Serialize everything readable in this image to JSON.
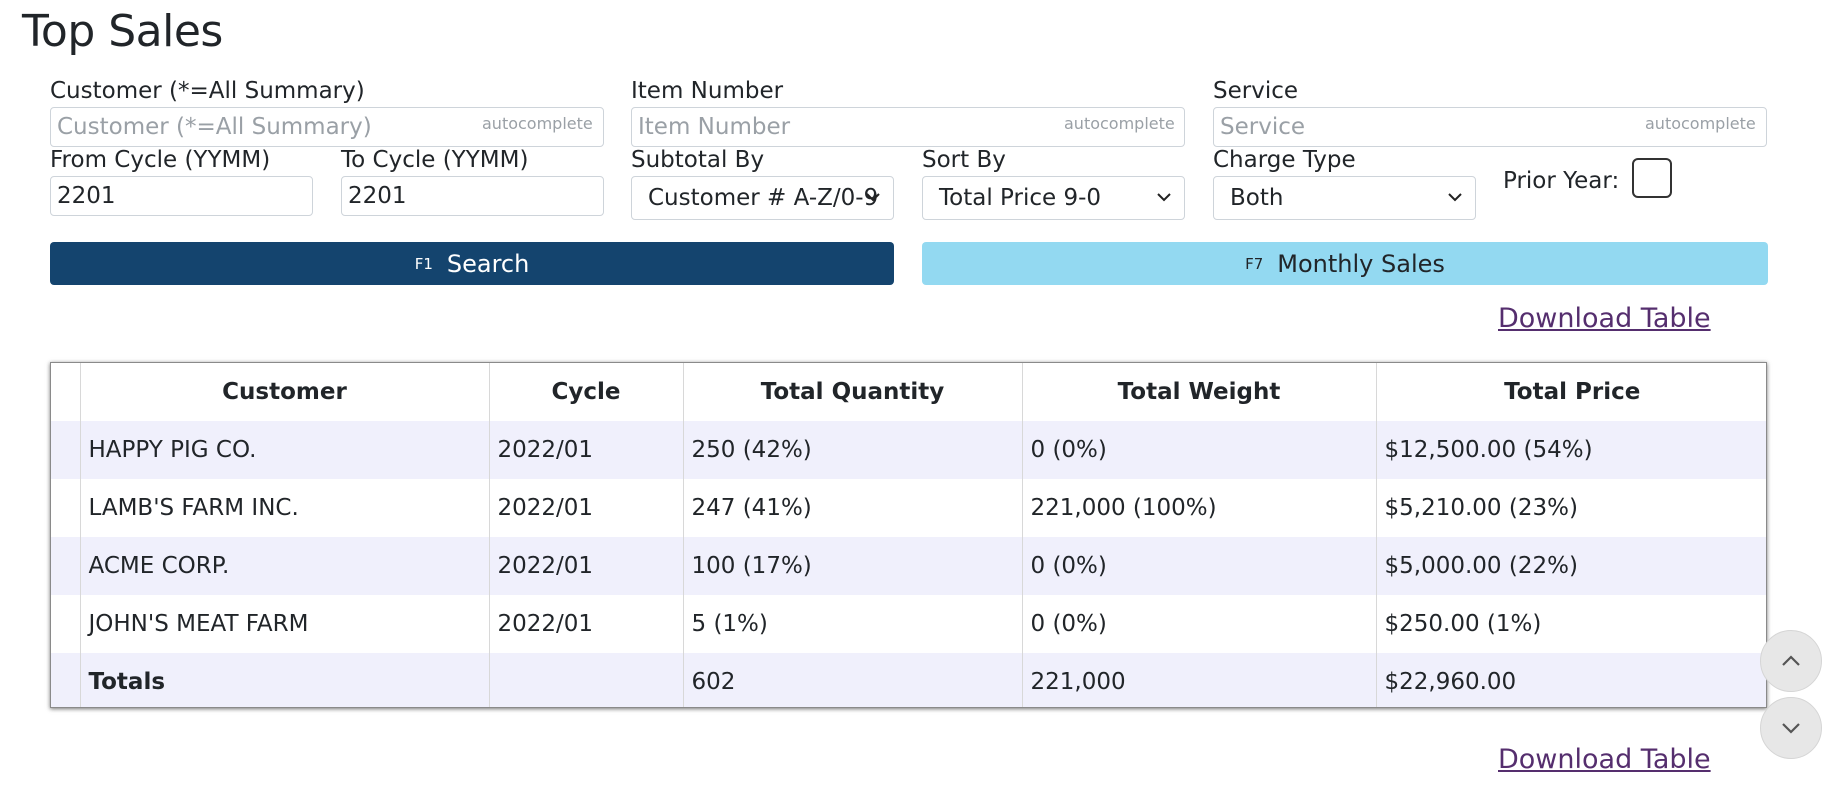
{
  "page_title": "Top Sales",
  "filters": {
    "customer": {
      "label": "Customer (*=All Summary)",
      "placeholder": "Customer (*=All Summary)",
      "value": "",
      "hint": "autocomplete"
    },
    "item_number": {
      "label": "Item Number",
      "placeholder": "Item Number",
      "value": "",
      "hint": "autocomplete"
    },
    "service": {
      "label": "Service",
      "placeholder": "Service",
      "value": "",
      "hint": "autocomplete"
    },
    "from_cycle": {
      "label": "From Cycle (YYMM)",
      "value": "2201"
    },
    "to_cycle": {
      "label": "To Cycle (YYMM)",
      "value": "2201"
    },
    "subtotal_by": {
      "label": "Subtotal By",
      "selected": "Customer # A-Z/0-9"
    },
    "sort_by": {
      "label": "Sort By",
      "selected": "Total Price 9-0"
    },
    "charge_type": {
      "label": "Charge Type",
      "selected": "Both"
    },
    "prior_year": {
      "label": "Prior Year:",
      "checked": false
    }
  },
  "buttons": {
    "search": {
      "key": "F1",
      "label": "Search"
    },
    "monthly_sales": {
      "key": "F7",
      "label": "Monthly Sales"
    }
  },
  "download_label": "Download Table",
  "table": {
    "headers": [
      "",
      "Customer",
      "Cycle",
      "Total Quantity",
      "Total Weight",
      "Total Price"
    ],
    "rows": [
      {
        "customer": "HAPPY PIG CO.",
        "cycle": "2022/01",
        "quantity": "250 (42%)",
        "weight": "0 (0%)",
        "price": "$12,500.00 (54%)"
      },
      {
        "customer": "LAMB'S FARM INC.",
        "cycle": "2022/01",
        "quantity": "247 (41%)",
        "weight": "221,000 (100%)",
        "price": "$5,210.00 (23%)"
      },
      {
        "customer": "ACME CORP.",
        "cycle": "2022/01",
        "quantity": "100 (17%)",
        "weight": "0 (0%)",
        "price": "$5,000.00 (22%)"
      },
      {
        "customer": "JOHN'S MEAT FARM",
        "cycle": "2022/01",
        "quantity": "5 (1%)",
        "weight": "0 (0%)",
        "price": "$250.00 (1%)"
      }
    ],
    "totals": {
      "label": "Totals",
      "cycle": "",
      "quantity": "602",
      "weight": "221,000",
      "price": "$22,960.00"
    }
  },
  "colors": {
    "search_button": "#14446e",
    "monthly_button": "#93d9f1",
    "row_stripe": "#f0f0fc",
    "link": "#552e6e"
  },
  "icons": {
    "select_chevron": "chevron-down-icon",
    "scroll_up": "chevron-up-icon",
    "scroll_down": "chevron-down-icon"
  }
}
